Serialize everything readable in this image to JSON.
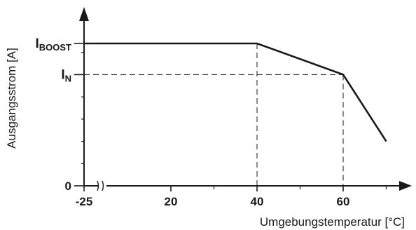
{
  "chart_data": {
    "type": "line",
    "xlabel": "Umgebungstemperatur [°C]",
    "ylabel": "Ausgangsstrom [A]",
    "x_ticks": [
      {
        "value": -25,
        "label": "-25"
      },
      {
        "value": 20,
        "label": "20"
      },
      {
        "value": 40,
        "label": "40"
      },
      {
        "value": 60,
        "label": "60"
      }
    ],
    "y_levels": [
      {
        "value": 0,
        "main": "0",
        "sub": ""
      },
      {
        "value": 1.25,
        "main": "I",
        "sub": "N"
      },
      {
        "value": 1.6,
        "main": "I",
        "sub": "BOOST"
      }
    ],
    "y_minor_ticks": [
      0.25,
      0.5,
      0.75,
      1.0,
      1.25,
      1.5
    ],
    "x_minor_ticks": [
      -15,
      30,
      50,
      70
    ],
    "axis_break": "≈",
    "series": [
      {
        "points": [
          [
            -25,
            1.6
          ],
          [
            40,
            1.6
          ],
          [
            60,
            1.25
          ],
          [
            70,
            0.5
          ]
        ]
      }
    ],
    "reference_lines": [
      {
        "x": 40,
        "y": 1.6
      },
      {
        "x": 60,
        "y": 1.25
      }
    ],
    "xlim": [
      -25,
      75
    ],
    "ylim": [
      0,
      1.9
    ],
    "grid": false,
    "line_color": "#1a1a1a"
  }
}
